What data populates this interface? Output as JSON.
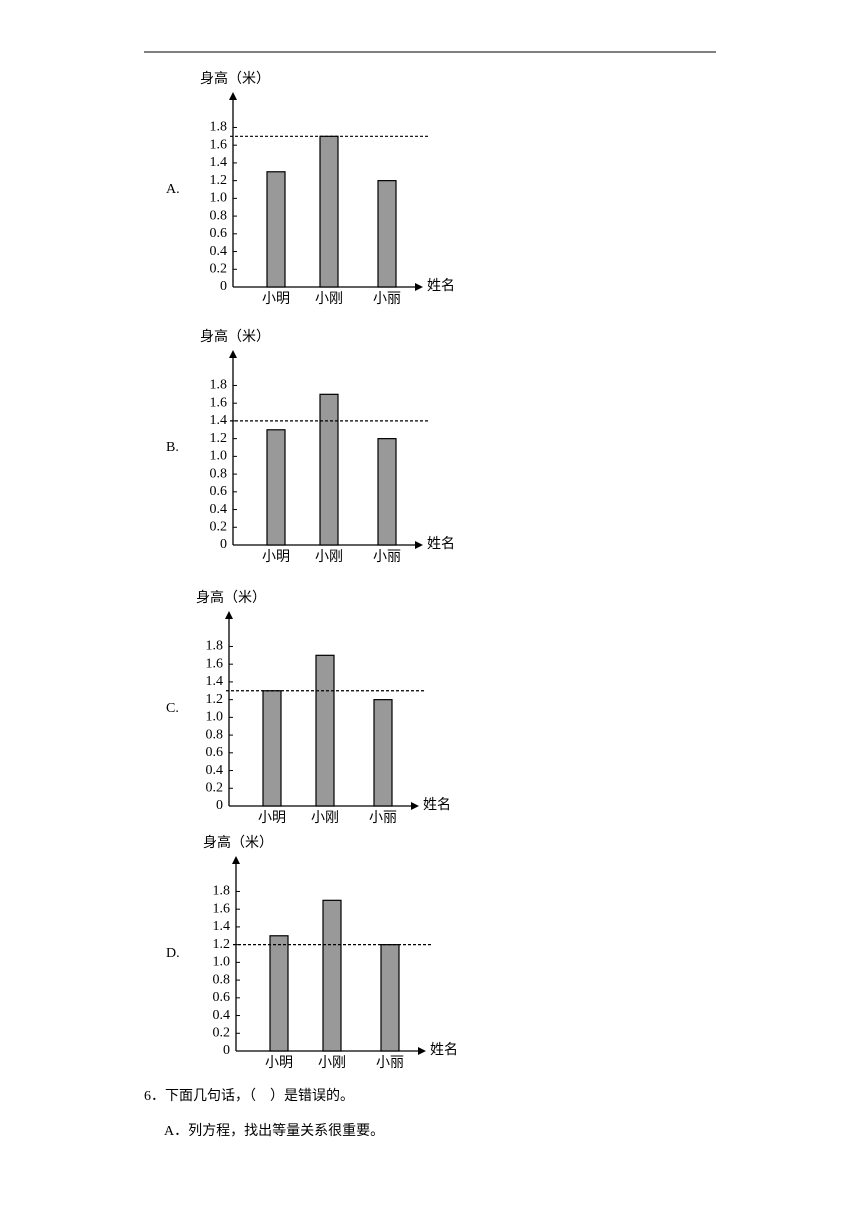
{
  "chart_data": [
    {
      "type": "bar",
      "label": "A.",
      "y_label": "身高（米）",
      "x_label": "姓名",
      "categories": [
        "小明",
        "小刚",
        "小丽"
      ],
      "values": [
        1.3,
        1.7,
        1.2
      ],
      "color": "#999999",
      "ylim": [
        0,
        2.2
      ],
      "yticks": [
        0,
        0.2,
        0.4,
        0.6,
        0.8,
        {
          "value": 1,
          "label": "1.0"
        },
        1.2,
        1.4,
        1.6,
        1.8
      ],
      "reference_line": 1.7
    },
    {
      "type": "bar",
      "label": "B.",
      "y_label": "身高（米）",
      "x_label": "姓名",
      "categories": [
        "小明",
        "小刚",
        "小丽"
      ],
      "values": [
        1.3,
        1.7,
        1.2
      ],
      "color": "#999999",
      "ylim": [
        0,
        2.2
      ],
      "yticks": [
        0,
        0.2,
        0.4,
        0.6,
        0.8,
        {
          "value": 1,
          "label": "1.0"
        },
        1.2,
        1.4,
        1.6,
        1.8
      ],
      "reference_line": 1.4
    },
    {
      "type": "bar",
      "label": "C.",
      "y_label": "身高（米）",
      "x_label": "姓名",
      "categories": [
        "小明",
        "小刚",
        "小丽"
      ],
      "values": [
        1.3,
        1.7,
        1.2
      ],
      "color": "#999999",
      "ylim": [
        0,
        2.2
      ],
      "yticks": [
        0,
        0.2,
        0.4,
        0.6,
        0.8,
        {
          "value": 1,
          "label": "1.0"
        },
        1.2,
        1.4,
        1.6,
        1.8
      ],
      "reference_line": 1.3
    },
    {
      "type": "bar",
      "label": "D.",
      "y_label": "身高（米）",
      "x_label": "姓名",
      "categories": [
        "小明",
        "小刚",
        "小丽"
      ],
      "values": [
        1.3,
        1.7,
        1.2
      ],
      "color": "#999999",
      "ylim": [
        0,
        2.2
      ],
      "yticks": [
        0,
        0.2,
        0.4,
        0.6,
        0.8,
        {
          "value": 1,
          "label": "1.0"
        },
        1.2,
        1.4,
        1.6,
        1.8
      ],
      "reference_line": 1.2
    }
  ],
  "question": {
    "text": "6．下面几句话，（　）是错误的。",
    "options": [
      "A．列方程，找出等量关系很重要。"
    ]
  }
}
